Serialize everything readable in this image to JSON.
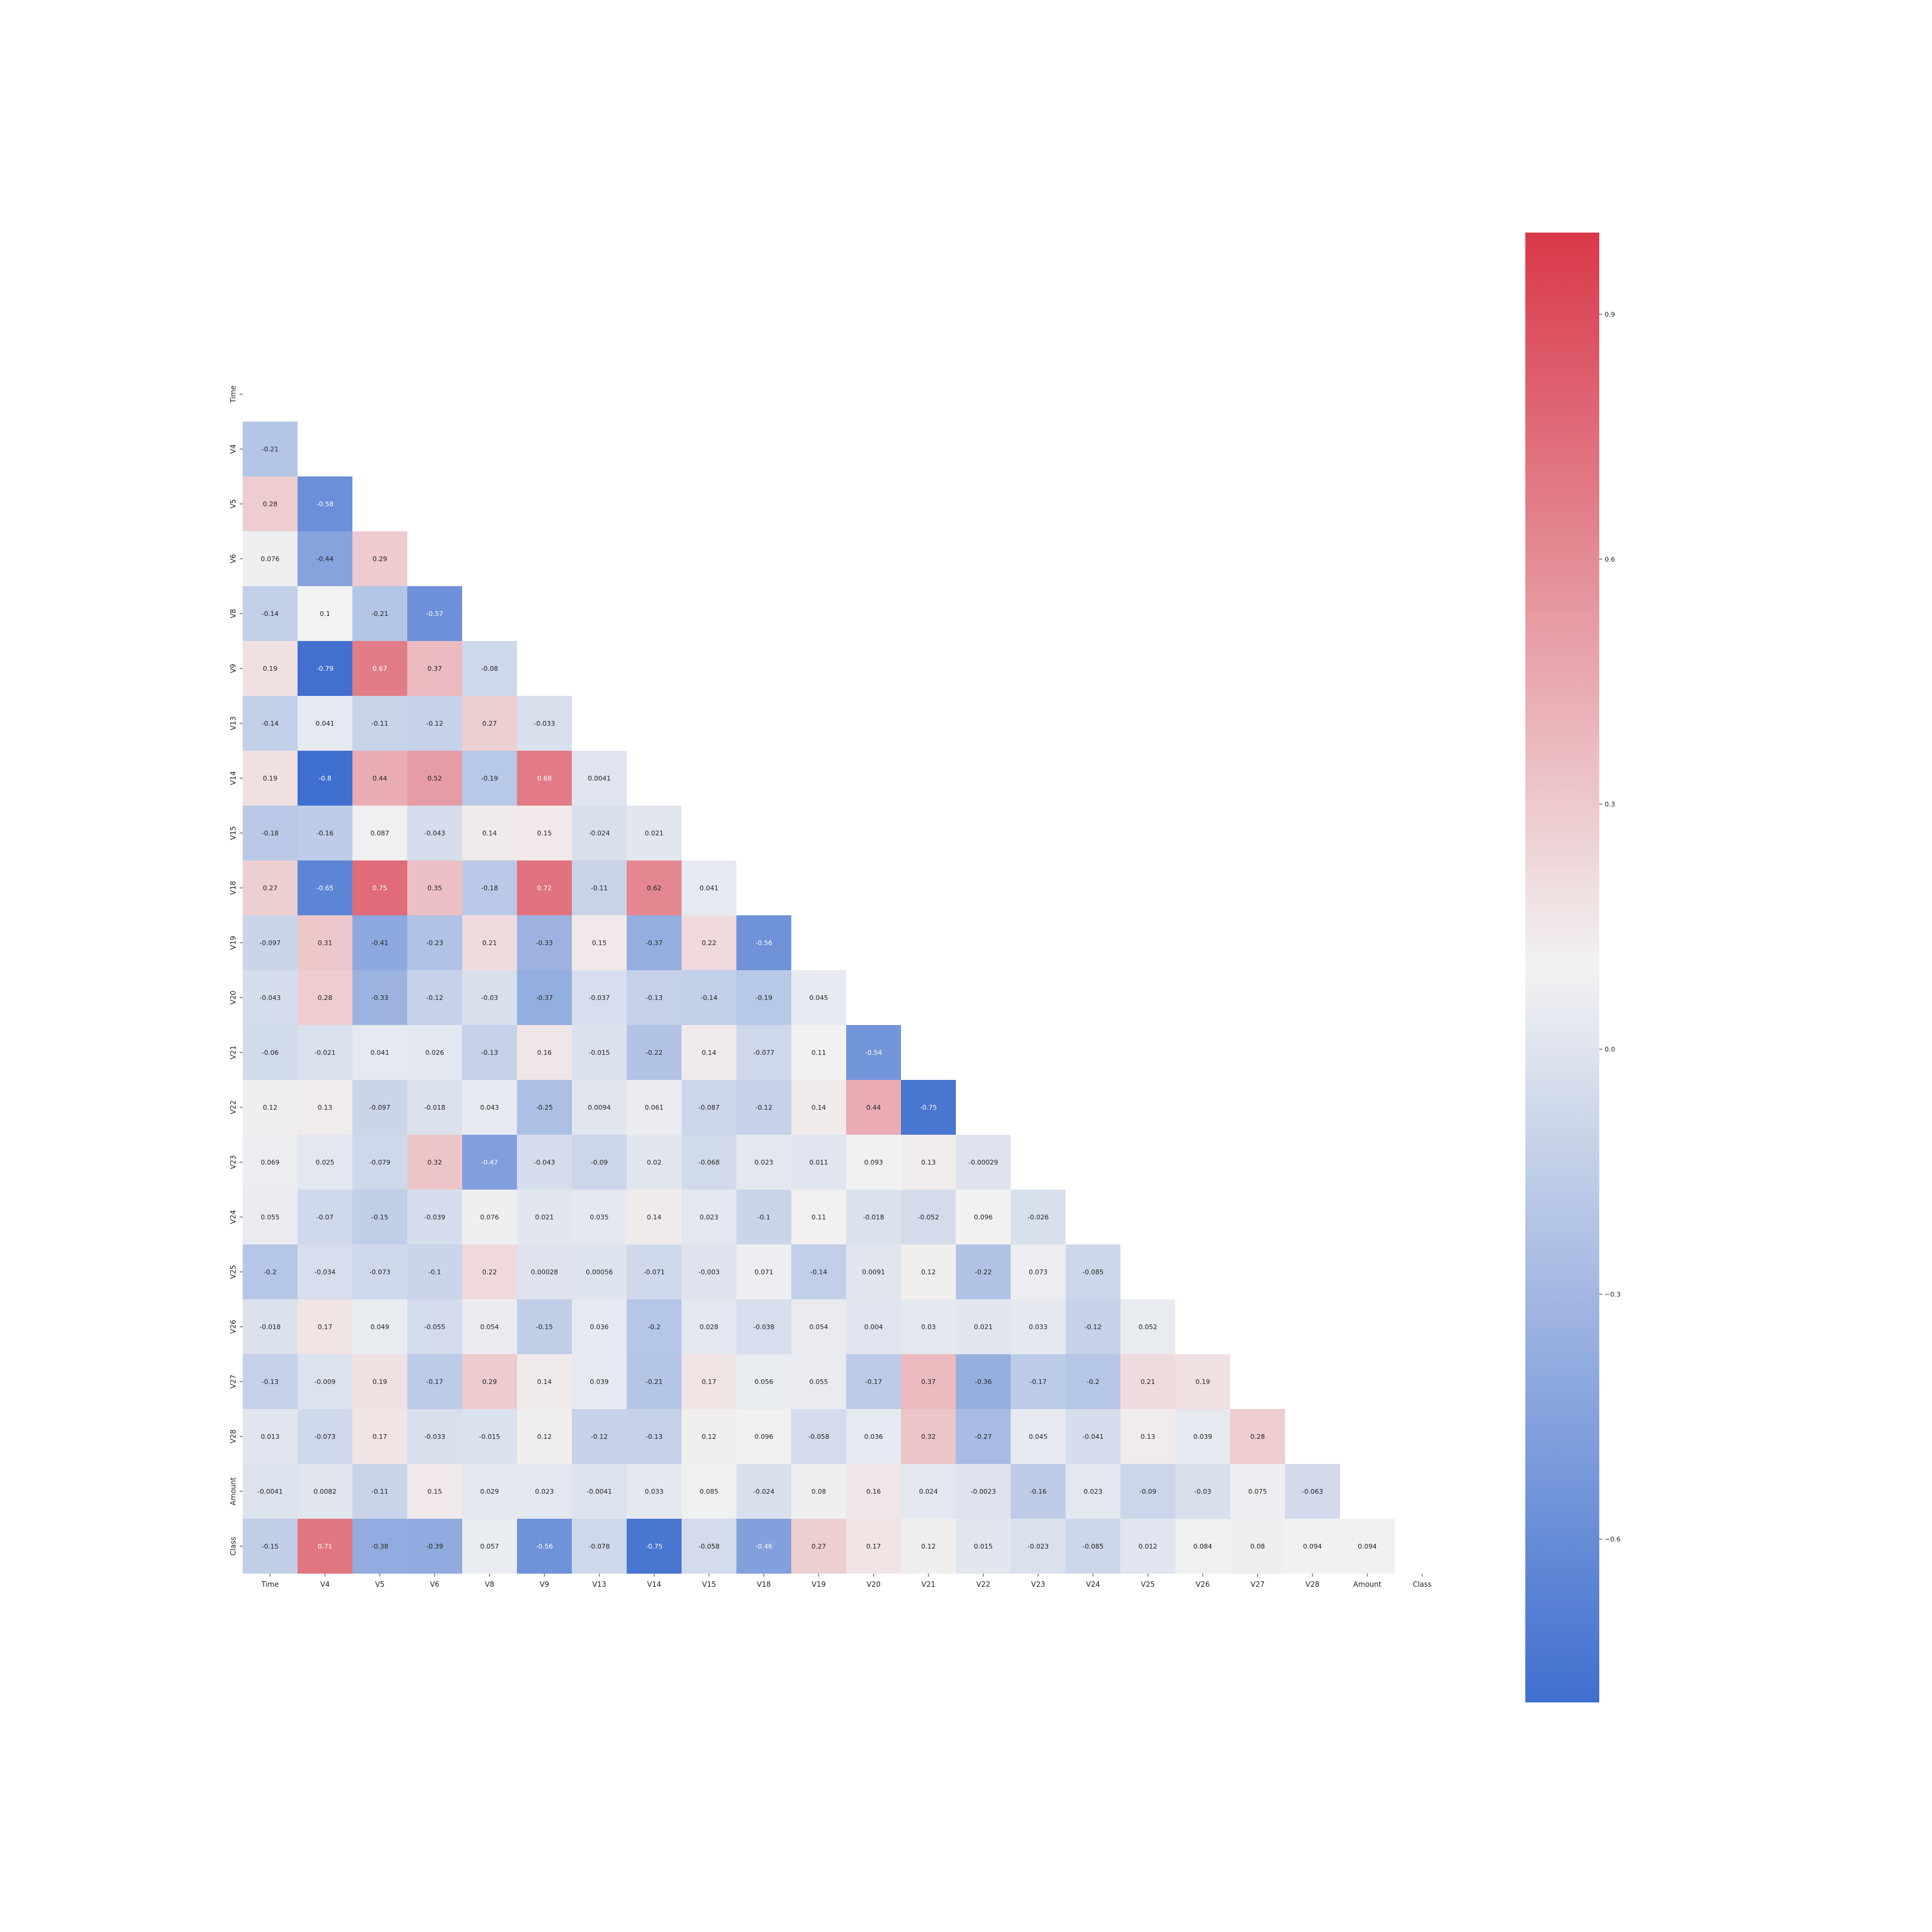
{
  "chart_data": {
    "type": "heatmap",
    "title": "",
    "xlabel": "",
    "ylabel": "",
    "labels": [
      "Time",
      "V4",
      "V5",
      "V6",
      "V8",
      "V9",
      "V13",
      "V14",
      "V15",
      "V18",
      "V19",
      "V20",
      "V21",
      "V22",
      "V23",
      "V24",
      "V25",
      "V26",
      "V27",
      "V28",
      "Amount",
      "Class"
    ],
    "cell_values": [
      [],
      [
        "-0.21"
      ],
      [
        "0.28",
        "-0.58"
      ],
      [
        "0.076",
        "-0.44",
        "0.29"
      ],
      [
        "-0.14",
        "0.1",
        "-0.21",
        "-0.57"
      ],
      [
        "0.19",
        "-0.79",
        "0.67",
        "0.37",
        "-0.08"
      ],
      [
        "-0.14",
        "0.041",
        "-0.11",
        "-0.12",
        "0.27",
        "-0.033"
      ],
      [
        "0.19",
        "-0.8",
        "0.44",
        "0.52",
        "-0.19",
        "0.68",
        "0.0041"
      ],
      [
        "-0.18",
        "-0.16",
        "0.087",
        "-0.043",
        "0.14",
        "0.15",
        "-0.024",
        "0.021"
      ],
      [
        "0.27",
        "-0.65",
        "0.75",
        "0.35",
        "-0.18",
        "0.72",
        "-0.11",
        "0.62",
        "0.041"
      ],
      [
        "-0.097",
        "0.31",
        "-0.41",
        "-0.23",
        "0.21",
        "-0.33",
        "0.15",
        "-0.37",
        "0.22",
        "-0.56"
      ],
      [
        "-0.043",
        "0.28",
        "-0.33",
        "-0.12",
        "-0.03",
        "-0.37",
        "-0.037",
        "-0.13",
        "-0.14",
        "-0.19",
        "0.045"
      ],
      [
        "-0.06",
        "-0.021",
        "0.041",
        "0.026",
        "-0.13",
        "0.16",
        "-0.015",
        "-0.22",
        "0.14",
        "-0.077",
        "0.11",
        "-0.54"
      ],
      [
        "0.12",
        "0.13",
        "-0.097",
        "-0.018",
        "0.043",
        "-0.25",
        "0.0094",
        "0.061",
        "-0.087",
        "-0.12",
        "0.14",
        "0.44",
        "-0.75"
      ],
      [
        "0.069",
        "0.025",
        "-0.079",
        "0.32",
        "-0.47",
        "-0.043",
        "-0.09",
        "0.02",
        "-0.068",
        "0.023",
        "0.011",
        "0.093",
        "0.13",
        "-0.00029"
      ],
      [
        "0.055",
        "-0.07",
        "-0.15",
        "-0.039",
        "0.076",
        "0.021",
        "0.035",
        "0.14",
        "0.023",
        "-0.1",
        "0.11",
        "-0.018",
        "-0.052",
        "0.096",
        "-0.026"
      ],
      [
        "-0.2",
        "-0.034",
        "-0.073",
        "-0.1",
        "0.22",
        "0.00028",
        "0.00056",
        "-0.071",
        "-0.003",
        "0.071",
        "-0.14",
        "0.0091",
        "0.12",
        "-0.22",
        "0.073",
        "-0.085"
      ],
      [
        "-0.018",
        "0.17",
        "0.049",
        "-0.055",
        "0.054",
        "-0.15",
        "0.036",
        "-0.2",
        "0.028",
        "-0.038",
        "0.054",
        "0.004",
        "0.03",
        "0.021",
        "0.033",
        "-0.12",
        "0.052"
      ],
      [
        "-0.13",
        "-0.009",
        "0.19",
        "-0.17",
        "0.29",
        "0.14",
        "0.039",
        "-0.21",
        "0.17",
        "0.056",
        "0.055",
        "-0.17",
        "0.37",
        "-0.36",
        "-0.17",
        "-0.2",
        "0.21",
        "0.19"
      ],
      [
        "0.013",
        "-0.073",
        "0.17",
        "-0.033",
        "-0.015",
        "0.12",
        "-0.12",
        "-0.13",
        "0.12",
        "0.096",
        "-0.058",
        "0.036",
        "0.32",
        "-0.27",
        "0.045",
        "-0.041",
        "0.13",
        "0.039",
        "0.28"
      ],
      [
        "-0.0041",
        "0.0082",
        "-0.11",
        "0.15",
        "0.029",
        "0.023",
        "-0.0041",
        "0.033",
        "0.085",
        "-0.024",
        "0.08",
        "0.16",
        "0.024",
        "-0.0023",
        "-0.16",
        "0.023",
        "-0.09",
        "-0.03",
        "0.075",
        "-0.063"
      ],
      [
        "-0.15",
        "0.71",
        "-0.38",
        "-0.39",
        "0.057",
        "-0.56",
        "-0.078",
        "-0.75",
        "-0.058",
        "-0.46",
        "0.27",
        "0.17",
        "0.12",
        "0.015",
        "-0.023",
        "-0.085",
        "0.012",
        "0.084",
        "0.08",
        "0.094",
        "0.094"
      ]
    ],
    "colorbar": {
      "min": -0.8,
      "max": 1.0,
      "ticks": [
        0.9,
        0.6,
        0.3,
        0.0,
        -0.3,
        -0.6
      ],
      "tick_labels": [
        "0.9",
        "0.6",
        "0.3",
        "0.0",
        "−0.3",
        "−0.6"
      ],
      "colors": {
        "negative": "#3f6fcf",
        "neutral": "#f2f2f2",
        "positive": "#d9394a"
      }
    },
    "grid": false,
    "mask": "upper-triangle"
  }
}
